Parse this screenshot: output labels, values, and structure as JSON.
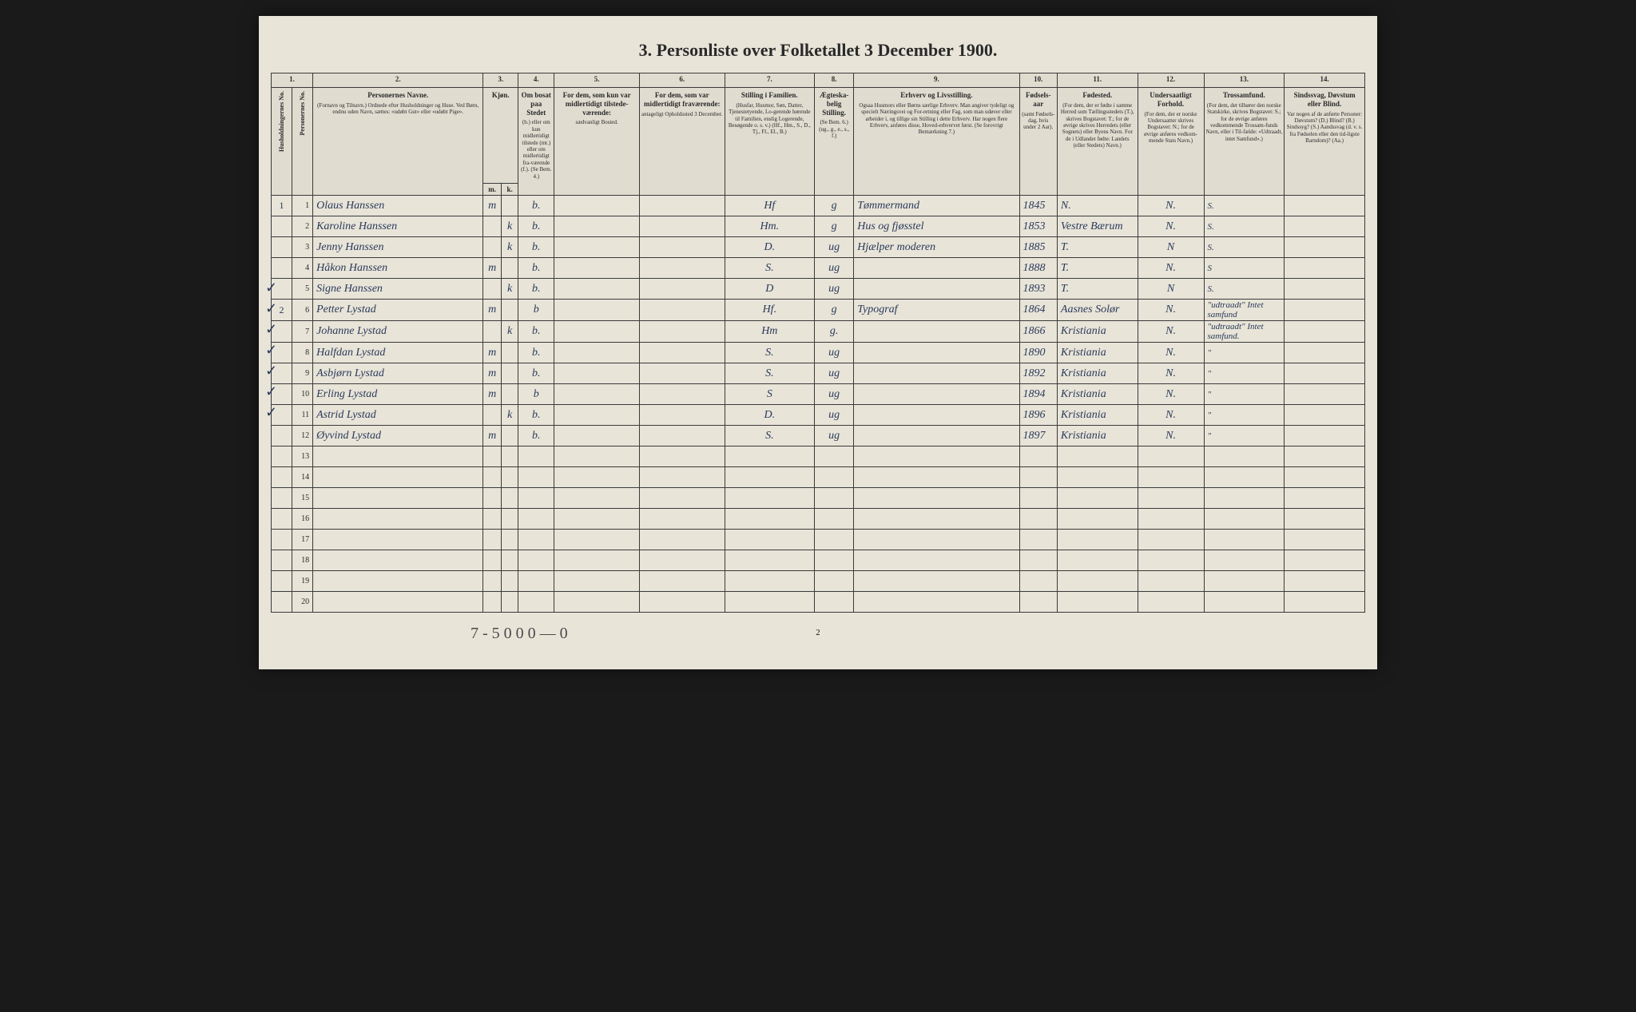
{
  "title": "3. Personliste over Folketallet 3 December 1900.",
  "colNumbers": [
    "1.",
    "2.",
    "3.",
    "4.",
    "5.",
    "6.",
    "7.",
    "8.",
    "9.",
    "10.",
    "11.",
    "12.",
    "13.",
    "14."
  ],
  "headers": {
    "hhNo": "Husholdningernes No.",
    "personNo": "Personernes No.",
    "name": {
      "title": "Personernes Navne.",
      "sub": "(Fornavn og Tilnavn.) Ordnede efter Husholdninger og Huse. Ved Børn, endnu uden Navn, sættes: «udøbt Gut» eller «udøbt Pige»."
    },
    "sex": {
      "title": "Kjøn.",
      "m": "m.",
      "k": "k."
    },
    "resident": {
      "title": "Om bosat paa Stedet",
      "sub": "(b.) eller om kun midlertidigt tilstede (mt.) eller om midlertidigt fra-værende (f.). (Se Bem. 4.)"
    },
    "tempPresent": {
      "title": "For dem, som kun var midlertidigt tilstede-værende:",
      "sub": "sædvanligt Bosted."
    },
    "tempAbsent": {
      "title": "For dem, som var midlertidigt fraværende:",
      "sub": "antageligt Opholdssted 3 December."
    },
    "familyPos": {
      "title": "Stilling i Familien.",
      "sub": "(Husfar, Husmor, Søn, Datter, Tjenestetyende, Lo-gerende hørende til Familien, enslig Logerende, Besøgende o. s. v.) (Hf., Hm., S., D., Tj., Fl., El., B.)"
    },
    "marital": {
      "title": "Ægteska-belig Stilling.",
      "sub": "(Se Bem. 6.) (ug., g., e., s., f.)"
    },
    "occupation": {
      "title": "Erhverv og Livsstilling.",
      "sub": "Ogsaa Husmors eller Børns særlige Erhverv. Man angiver tydeligt og specielt Næringsvei og For-retning eller Fag, som man udøver eller arbeider i, og tillige sin Stilling i dette Erhverv. Har nogen flere Erhverv, anføres disse, Hoved-erhvervet først. (Se forovrigt Bemærkning 7.)"
    },
    "birthYear": {
      "title": "Fødsels-aar",
      "sub": "(samt Fødsels-dag, hvis under 2 Aar)."
    },
    "birthplace": {
      "title": "Fødested.",
      "sub": "(For dem, der er fødte i samme Herred som Tællingsstedets (T.), skrives Bogstavet: T.; for de øvrige skrives Herredets (eller Sognets) eller Byens Navn. For de i Udlandet fødte: Landets (eller Stedets) Navn.)"
    },
    "nationality": {
      "title": "Undersaatligt Forhold.",
      "sub": "(For dem, der er norske Undersaatter skrives Bogstavet: N.; for de øvrige anføres vedkom-mende Stats Navn.)"
    },
    "religion": {
      "title": "Trossamfund.",
      "sub": "(For dem, der tilhører den norske Statskirke, skrives Bogstavet: S.; for de øvrige anføres vedkommende Trossam-funds Navn, eller i Til-fælde: «Udtraadt, intet Samfund».)"
    },
    "disability": {
      "title": "Sindssvag, Døvstum eller Blind.",
      "sub": "Var nogen af de anførte Personer: Døvstum? (D.) Blind? (B.) Sindssyg? (S.) Aandssvag (d. v. s. fra Fødselen eller den tid-ligste Barndom)? (Aa.)"
    }
  },
  "rows": [
    {
      "hh": "1",
      "no": "1",
      "name": "Olaus Hanssen",
      "sexM": "m",
      "sexK": "",
      "stat": "b.",
      "fam": "Hf",
      "mar": "g",
      "occ": "Tømmermand",
      "year": "1845",
      "birth": "N.",
      "nat": "N.",
      "rel": "S.",
      "check": false
    },
    {
      "hh": "",
      "no": "2",
      "name": "Karoline Hanssen",
      "sexM": "",
      "sexK": "k",
      "stat": "b.",
      "fam": "Hm.",
      "mar": "g",
      "occ": "Hus og fjøsstel",
      "year": "1853",
      "birth": "Vestre Bærum",
      "nat": "N.",
      "rel": "S.",
      "check": false
    },
    {
      "hh": "",
      "no": "3",
      "name": "Jenny Hanssen",
      "sexM": "",
      "sexK": "k",
      "stat": "b.",
      "fam": "D.",
      "mar": "ug",
      "occ": "Hjælper moderen",
      "year": "1885",
      "birth": "T.",
      "nat": "N",
      "rel": "S.",
      "check": false
    },
    {
      "hh": "",
      "no": "4",
      "name": "Håkon Hanssen",
      "sexM": "m",
      "sexK": "",
      "stat": "b.",
      "fam": "S.",
      "mar": "ug",
      "occ": "",
      "year": "1888",
      "birth": "T.",
      "nat": "N.",
      "rel": "S",
      "check": false
    },
    {
      "hh": "",
      "no": "5",
      "name": "Signe Hanssen",
      "sexM": "",
      "sexK": "k",
      "stat": "b.",
      "fam": "D",
      "mar": "ug",
      "occ": "",
      "year": "1893",
      "birth": "T.",
      "nat": "N",
      "rel": "S.",
      "check": false
    },
    {
      "hh": "2",
      "no": "6",
      "name": "Petter Lystad",
      "sexM": "m",
      "sexK": "",
      "stat": "b",
      "fam": "Hf.",
      "mar": "g",
      "occ": "Typograf",
      "year": "1864",
      "birth": "Aasnes Solør",
      "nat": "N.",
      "rel": "\"udtraadt\" Intet samfund",
      "check": true
    },
    {
      "hh": "",
      "no": "7",
      "name": "Johanne Lystad",
      "sexM": "",
      "sexK": "k",
      "stat": "b.",
      "fam": "Hm",
      "mar": "g.",
      "occ": "",
      "year": "1866",
      "birth": "Kristiania",
      "nat": "N.",
      "rel": "\"udtraadt\" Intet samfund.",
      "check": true
    },
    {
      "hh": "",
      "no": "8",
      "name": "Halfdan Lystad",
      "sexM": "m",
      "sexK": "",
      "stat": "b.",
      "fam": "S.",
      "mar": "ug",
      "occ": "",
      "year": "1890",
      "birth": "Kristiania",
      "nat": "N.",
      "rel": "\"",
      "check": true
    },
    {
      "hh": "",
      "no": "9",
      "name": "Asbjørn Lystad",
      "sexM": "m",
      "sexK": "",
      "stat": "b.",
      "fam": "S.",
      "mar": "ug",
      "occ": "",
      "year": "1892",
      "birth": "Kristiania",
      "nat": "N.",
      "rel": "\"",
      "check": true
    },
    {
      "hh": "",
      "no": "10",
      "name": "Erling Lystad",
      "sexM": "m",
      "sexK": "",
      "stat": "b",
      "fam": "S",
      "mar": "ug",
      "occ": "",
      "year": "1894",
      "birth": "Kristiania",
      "nat": "N.",
      "rel": "\"",
      "check": true
    },
    {
      "hh": "",
      "no": "11",
      "name": "Astrid Lystad",
      "sexM": "",
      "sexK": "k",
      "stat": "b.",
      "fam": "D.",
      "mar": "ug",
      "occ": "",
      "year": "1896",
      "birth": "Kristiania",
      "nat": "N.",
      "rel": "\"",
      "check": true
    },
    {
      "hh": "",
      "no": "12",
      "name": "Øyvind Lystad",
      "sexM": "m",
      "sexK": "",
      "stat": "b.",
      "fam": "S.",
      "mar": "ug",
      "occ": "",
      "year": "1897",
      "birth": "Kristiania",
      "nat": "N.",
      "rel": "\"",
      "check": true
    }
  ],
  "emptyRows": [
    "13",
    "14",
    "15",
    "16",
    "17",
    "18",
    "19",
    "20"
  ],
  "bottomNote": "7 - 5  0  0    0  —  0",
  "pageNum": "2",
  "colors": {
    "paper": "#e8e4d8",
    "ink": "#2a2a2a",
    "script": "#2a3a5a",
    "border": "#3a3a3a"
  }
}
